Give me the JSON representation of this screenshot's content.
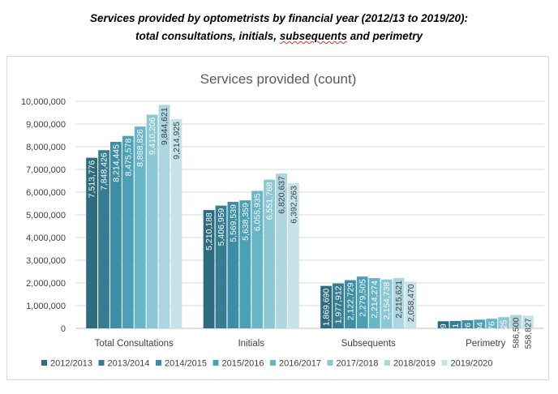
{
  "page": {
    "heading_line1": "Services provided by optometrists by financial year (2012/13 to 2019/20):",
    "heading_line2_prefix": "total consultations, initials, ",
    "heading_line2_squiggle": "subsequents",
    "heading_line2_suffix": " and perimetry"
  },
  "chart_data": {
    "type": "bar",
    "title": "Services provided (count)",
    "xlabel": "",
    "ylabel": "",
    "ylim": [
      0,
      10000000
    ],
    "yticks": [
      0,
      1000000,
      2000000,
      3000000,
      4000000,
      5000000,
      6000000,
      7000000,
      8000000,
      9000000,
      10000000
    ],
    "grid": true,
    "legend": "bottom",
    "categories": [
      "Total Consultations",
      "Initials",
      "Subsequents",
      "Perimetry"
    ],
    "series": [
      {
        "name": "2012/2013",
        "color": "#2d6b7f",
        "values": [
          7513776,
          5210188,
          1869690,
          310329
        ]
      },
      {
        "name": "2013/2014",
        "color": "#347d92",
        "values": [
          7848426,
          5406959,
          1977912,
          325831
        ]
      },
      {
        "name": "2014/2015",
        "color": "#3c8ea4",
        "values": [
          8214445,
          5569539,
          2122729,
          356026
        ]
      },
      {
        "name": "2015/2016",
        "color": "#4aa0b6",
        "values": [
          8475578,
          5638359,
          2279505,
          382204
        ]
      },
      {
        "name": "2016/2017",
        "color": "#68b5c8",
        "values": [
          8888826,
          6055935,
          2214274,
          421576
        ]
      },
      {
        "name": "2017/2018",
        "color": "#8cc7d5",
        "values": [
          9410206,
          6551768,
          2154738,
          492525
        ]
      },
      {
        "name": "2018/2019",
        "color": "#aed6e0",
        "values": [
          9844621,
          6820637,
          2215621,
          586500
        ]
      },
      {
        "name": "2019/2020",
        "color": "#c7e2ea",
        "values": [
          9214925,
          6392263,
          2058470,
          558827
        ]
      }
    ]
  }
}
